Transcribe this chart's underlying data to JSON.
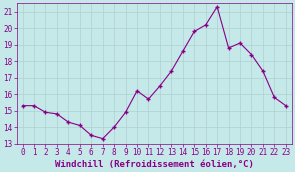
{
  "x": [
    0,
    1,
    2,
    3,
    4,
    5,
    6,
    7,
    8,
    9,
    10,
    11,
    12,
    13,
    14,
    15,
    16,
    17,
    18,
    19,
    20,
    21,
    22,
    23
  ],
  "y": [
    15.3,
    15.3,
    14.9,
    14.8,
    14.3,
    14.1,
    13.5,
    13.3,
    14.0,
    14.9,
    16.2,
    15.7,
    16.5,
    17.4,
    18.6,
    19.8,
    20.2,
    21.3,
    18.8,
    19.1,
    18.4,
    17.4,
    15.8,
    15.3
  ],
  "line_color": "#880088",
  "marker": "P",
  "marker_size": 2.5,
  "bg_color": "#c5e8e8",
  "grid_color": "#b0d0d0",
  "xlabel": "Windchill (Refroidissement éolien,°C)",
  "ylim": [
    13,
    21.5
  ],
  "xlim": [
    -0.5,
    23.5
  ],
  "yticks": [
    13,
    14,
    15,
    16,
    17,
    18,
    19,
    20,
    21
  ],
  "xticks": [
    0,
    1,
    2,
    3,
    4,
    5,
    6,
    7,
    8,
    9,
    10,
    11,
    12,
    13,
    14,
    15,
    16,
    17,
    18,
    19,
    20,
    21,
    22,
    23
  ],
  "tick_color": "#880088",
  "tick_fontsize": 5.5,
  "xlabel_fontsize": 6.5
}
